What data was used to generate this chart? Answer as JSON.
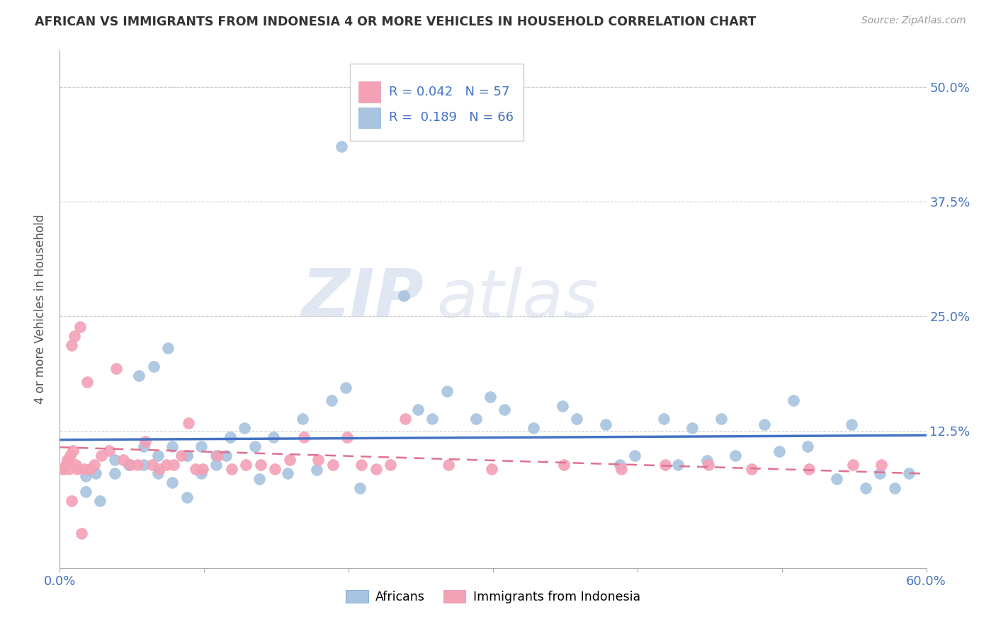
{
  "title": "AFRICAN VS IMMIGRANTS FROM INDONESIA 4 OR MORE VEHICLES IN HOUSEHOLD CORRELATION CHART",
  "source": "Source: ZipAtlas.com",
  "ylabel": "4 or more Vehicles in Household",
  "xlim": [
    0.0,
    0.6
  ],
  "ylim": [
    -0.025,
    0.54
  ],
  "legend_blue_R": "0.189",
  "legend_blue_N": "66",
  "legend_pink_R": "0.042",
  "legend_pink_N": "57",
  "legend_label_blue": "Africans",
  "legend_label_pink": "Immigrants from Indonesia",
  "color_blue": "#a8c4e0",
  "color_pink": "#f4a0b5",
  "color_blue_line": "#4472c4",
  "color_pink_line": "#e07090",
  "color_axis_text": "#4472c4",
  "watermark_zip": "ZIP",
  "watermark_atlas": "atlas",
  "blue_scatter_x": [
    0.195,
    0.075,
    0.065,
    0.055,
    0.038,
    0.025,
    0.018,
    0.115,
    0.135,
    0.088,
    0.098,
    0.068,
    0.108,
    0.148,
    0.058,
    0.048,
    0.078,
    0.088,
    0.118,
    0.168,
    0.128,
    0.188,
    0.198,
    0.238,
    0.258,
    0.288,
    0.308,
    0.328,
    0.348,
    0.378,
    0.418,
    0.438,
    0.458,
    0.488,
    0.508,
    0.548,
    0.568,
    0.588,
    0.298,
    0.268,
    0.248,
    0.358,
    0.388,
    0.398,
    0.428,
    0.448,
    0.468,
    0.498,
    0.518,
    0.538,
    0.558,
    0.578,
    0.038,
    0.048,
    0.028,
    0.018,
    0.058,
    0.068,
    0.078,
    0.088,
    0.098,
    0.108,
    0.138,
    0.158,
    0.178,
    0.208
  ],
  "blue_scatter_y": [
    0.435,
    0.215,
    0.195,
    0.185,
    0.093,
    0.078,
    0.075,
    0.098,
    0.108,
    0.098,
    0.108,
    0.098,
    0.088,
    0.118,
    0.108,
    0.088,
    0.108,
    0.098,
    0.118,
    0.138,
    0.128,
    0.158,
    0.172,
    0.272,
    0.138,
    0.138,
    0.148,
    0.128,
    0.152,
    0.132,
    0.138,
    0.128,
    0.138,
    0.132,
    0.158,
    0.132,
    0.078,
    0.078,
    0.162,
    0.168,
    0.148,
    0.138,
    0.088,
    0.098,
    0.088,
    0.092,
    0.098,
    0.102,
    0.108,
    0.072,
    0.062,
    0.062,
    0.078,
    0.088,
    0.048,
    0.058,
    0.088,
    0.078,
    0.068,
    0.052,
    0.078,
    0.098,
    0.072,
    0.078,
    0.082,
    0.062
  ],
  "pink_scatter_x": [
    0.008,
    0.01,
    0.004,
    0.014,
    0.019,
    0.009,
    0.007,
    0.005,
    0.011,
    0.017,
    0.021,
    0.024,
    0.029,
    0.034,
    0.039,
    0.044,
    0.049,
    0.054,
    0.059,
    0.064,
    0.069,
    0.074,
    0.079,
    0.084,
    0.089,
    0.094,
    0.099,
    0.109,
    0.119,
    0.129,
    0.139,
    0.149,
    0.159,
    0.169,
    0.179,
    0.189,
    0.199,
    0.209,
    0.219,
    0.229,
    0.239,
    0.269,
    0.299,
    0.349,
    0.389,
    0.419,
    0.449,
    0.479,
    0.519,
    0.549,
    0.569,
    0.002,
    0.003,
    0.006,
    0.008,
    0.012,
    0.015
  ],
  "pink_scatter_y": [
    0.218,
    0.228,
    0.088,
    0.238,
    0.178,
    0.103,
    0.098,
    0.093,
    0.088,
    0.083,
    0.083,
    0.088,
    0.098,
    0.103,
    0.193,
    0.093,
    0.088,
    0.088,
    0.113,
    0.088,
    0.083,
    0.088,
    0.088,
    0.098,
    0.133,
    0.083,
    0.083,
    0.098,
    0.083,
    0.088,
    0.088,
    0.083,
    0.093,
    0.118,
    0.093,
    0.088,
    0.118,
    0.088,
    0.083,
    0.088,
    0.138,
    0.088,
    0.083,
    0.088,
    0.083,
    0.088,
    0.088,
    0.083,
    0.083,
    0.088,
    0.088,
    0.083,
    0.083,
    0.083,
    0.048,
    0.083,
    0.013
  ]
}
